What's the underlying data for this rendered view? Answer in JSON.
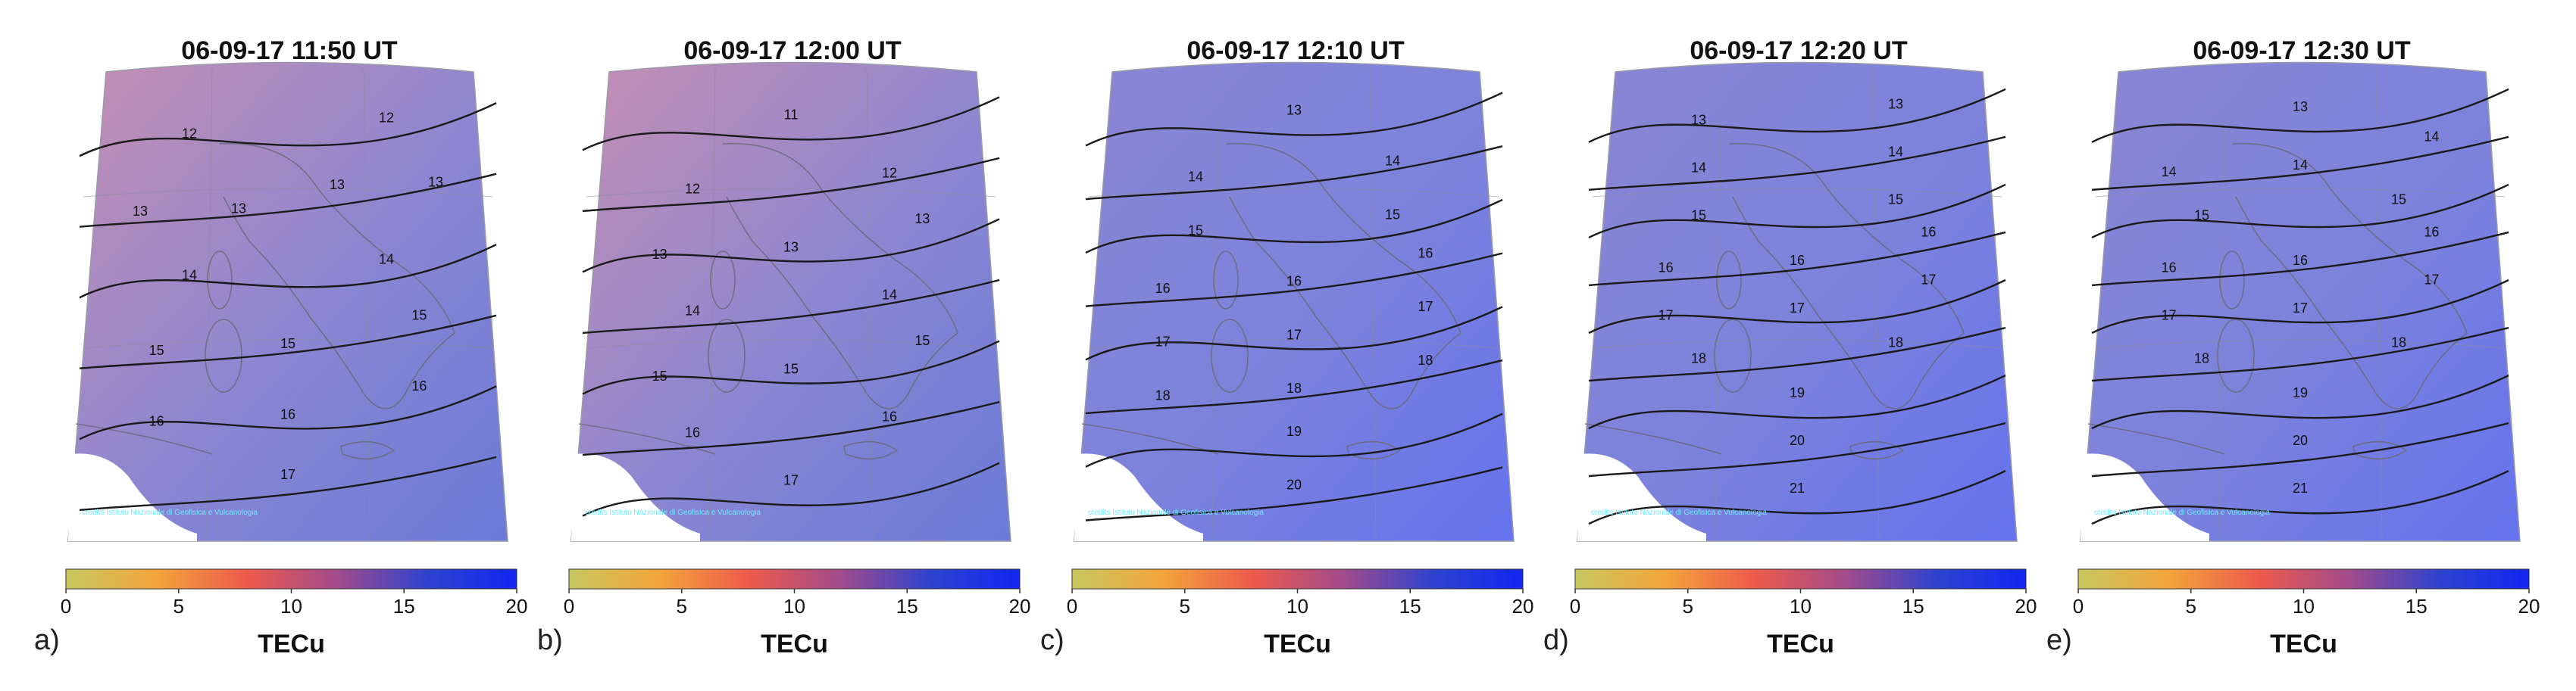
{
  "colorbar": {
    "ticks": [
      "0",
      "5",
      "10",
      "15",
      "20"
    ],
    "unit_label": "TECu",
    "range": [
      0,
      20
    ],
    "gradient_stops": [
      "#c8c860",
      "#f3a43a",
      "#ee5a4c",
      "#a24b8a",
      "#2f43d0",
      "#1226f0"
    ]
  },
  "map_colors": {
    "high_tec": "#6472ee",
    "mid_tec": "#8a86d2",
    "low_tec": "#c68fb2",
    "contour": "#1a1a1a",
    "coast": "#6a6a7a",
    "graticule": "#8c8c9c",
    "watermark": "#6fe8ff"
  },
  "watermark_text": "credits Istituto Nazionale di Geofisica e Vulcanologia",
  "panels": [
    {
      "label": "a)",
      "title": "06-09-17  11:50  UT",
      "contours": [
        {
          "value": "12",
          "labels": [
            "12",
            "12"
          ]
        },
        {
          "value": "13",
          "labels": [
            "13",
            "13",
            "13",
            "13"
          ]
        },
        {
          "value": "14",
          "labels": [
            "14",
            "14"
          ]
        },
        {
          "value": "15",
          "labels": [
            "15",
            "15",
            "15"
          ]
        },
        {
          "value": "16",
          "labels": [
            "16",
            "16",
            "16"
          ]
        },
        {
          "value": "17",
          "labels": [
            "17"
          ]
        }
      ],
      "tint": "low"
    },
    {
      "label": "b)",
      "title": "06-09-17  12:00  UT",
      "contours": [
        {
          "value": "11",
          "labels": [
            "11"
          ]
        },
        {
          "value": "12",
          "labels": [
            "12",
            "12"
          ]
        },
        {
          "value": "13",
          "labels": [
            "13",
            "13",
            "13"
          ]
        },
        {
          "value": "14",
          "labels": [
            "14",
            "14"
          ]
        },
        {
          "value": "15",
          "labels": [
            "15",
            "15",
            "15"
          ]
        },
        {
          "value": "16",
          "labels": [
            "16",
            "16"
          ]
        },
        {
          "value": "17",
          "labels": [
            "17"
          ]
        }
      ],
      "tint": "low"
    },
    {
      "label": "c)",
      "title": "06-09-17  12:10  UT",
      "contours": [
        {
          "value": "13",
          "labels": [
            "13"
          ]
        },
        {
          "value": "14",
          "labels": [
            "14",
            "14"
          ]
        },
        {
          "value": "15",
          "labels": [
            "15",
            "15"
          ]
        },
        {
          "value": "16",
          "labels": [
            "16",
            "16",
            "16"
          ]
        },
        {
          "value": "17",
          "labels": [
            "17",
            "17",
            "17"
          ]
        },
        {
          "value": "18",
          "labels": [
            "18",
            "18",
            "18"
          ]
        },
        {
          "value": "19",
          "labels": [
            "19"
          ]
        },
        {
          "value": "20",
          "labels": [
            "20"
          ]
        }
      ],
      "tint": "high"
    },
    {
      "label": "d)",
      "title": "06-09-17  12:20  UT",
      "contours": [
        {
          "value": "13",
          "labels": [
            "13",
            "13"
          ]
        },
        {
          "value": "14",
          "labels": [
            "14",
            "14"
          ]
        },
        {
          "value": "15",
          "labels": [
            "15",
            "15"
          ]
        },
        {
          "value": "16",
          "labels": [
            "16",
            "16",
            "16"
          ]
        },
        {
          "value": "17",
          "labels": [
            "17",
            "17",
            "17"
          ]
        },
        {
          "value": "18",
          "labels": [
            "18",
            "18"
          ]
        },
        {
          "value": "19",
          "labels": [
            "19"
          ]
        },
        {
          "value": "20",
          "labels": [
            "20"
          ]
        },
        {
          "value": "21",
          "labels": [
            "21"
          ]
        }
      ],
      "tint": "high"
    },
    {
      "label": "e)",
      "title": "06-09-17  12:30  UT",
      "contours": [
        {
          "value": "13",
          "labels": [
            "13"
          ]
        },
        {
          "value": "14",
          "labels": [
            "14",
            "14",
            "14"
          ]
        },
        {
          "value": "15",
          "labels": [
            "15",
            "15"
          ]
        },
        {
          "value": "16",
          "labels": [
            "16",
            "16",
            "16"
          ]
        },
        {
          "value": "17",
          "labels": [
            "17",
            "17",
            "17"
          ]
        },
        {
          "value": "18",
          "labels": [
            "18",
            "18"
          ]
        },
        {
          "value": "19",
          "labels": [
            "19"
          ]
        },
        {
          "value": "20",
          "labels": [
            "20"
          ]
        },
        {
          "value": "21",
          "labels": [
            "21"
          ]
        }
      ],
      "tint": "high"
    }
  ]
}
